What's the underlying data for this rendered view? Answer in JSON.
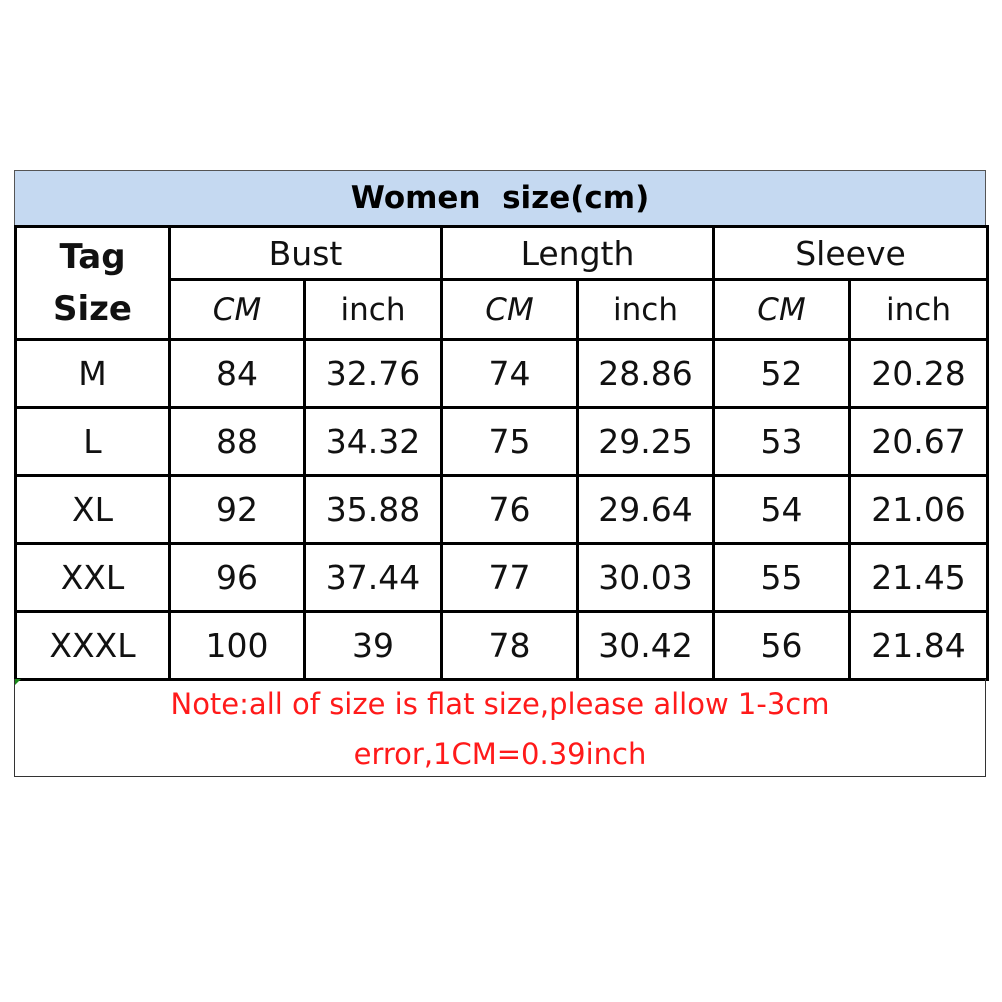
{
  "title": "Women  size(cm)",
  "header": {
    "tag_size": [
      "Tag",
      "Size"
    ],
    "groups": [
      "Bust",
      "Length",
      "Sleeve"
    ],
    "units": [
      "CM",
      "inch",
      "CM",
      "inch",
      "CM",
      "inch"
    ]
  },
  "rows": [
    {
      "size": "M",
      "values": [
        "84",
        "32.76",
        "74",
        "28.86",
        "52",
        "20.28"
      ]
    },
    {
      "size": "L",
      "values": [
        "88",
        "34.32",
        "75",
        "29.25",
        "53",
        "20.67"
      ]
    },
    {
      "size": "XL",
      "values": [
        "92",
        "35.88",
        "76",
        "29.64",
        "54",
        "21.06"
      ]
    },
    {
      "size": "XXL",
      "values": [
        "96",
        "37.44",
        "77",
        "30.03",
        "55",
        "21.45"
      ]
    },
    {
      "size": "XXXL",
      "values": [
        "100",
        "39",
        "78",
        "30.42",
        "56",
        "21.84"
      ]
    }
  ],
  "note": [
    "Note:all of size is flat size,please allow 1-3cm",
    "error,1CM=0.39inch"
  ],
  "colors": {
    "title_bg": "#c5d9f1",
    "note_text": "#ff1a1a"
  }
}
